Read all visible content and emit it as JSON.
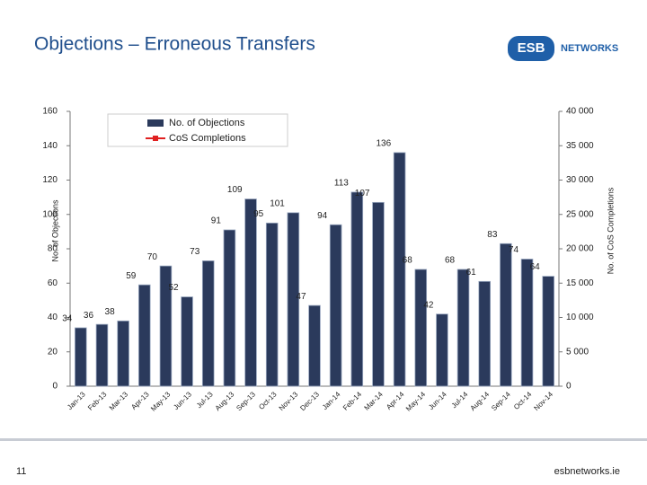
{
  "header": {
    "title": "Objections – Erroneous Transfers",
    "logo": "ESB",
    "logo_sub": "NETWORKS"
  },
  "footer": {
    "page": "11",
    "site": "esbnetworks.ie"
  },
  "chart_data": {
    "type": "bar",
    "categories": [
      "Jan-13",
      "Feb-13",
      "Mar-13",
      "Apr-13",
      "May-13",
      "Jun-13",
      "Jul-13",
      "Aug-13",
      "Sep-13",
      "Oct-13",
      "Nov-13",
      "Dec-13",
      "Jan-14",
      "Feb-14",
      "Mar-14",
      "Apr-14",
      "May-14",
      "Jun-14",
      "Jul-14",
      "Aug-14",
      "Sep-14",
      "Oct-14",
      "Nov-14"
    ],
    "series": [
      {
        "name": "No. of Objections",
        "color": "#2b3a5c",
        "values": [
          34,
          36,
          38,
          59,
          70,
          52,
          73,
          91,
          109,
          95,
          101,
          47,
          94,
          113,
          107,
          136,
          68,
          42,
          68,
          61,
          83,
          74,
          64
        ]
      },
      {
        "name": "CoS Completions",
        "color": "#e02020",
        "axis": "y2",
        "values": [
          null,
          null,
          null,
          null,
          null,
          null,
          null,
          null,
          null,
          null,
          null,
          null,
          null,
          null,
          null,
          null,
          null,
          null,
          null,
          null,
          null,
          null,
          null
        ]
      }
    ],
    "ylabel": "No. of Objections",
    "y2label": "No. of CoS Completions",
    "ylim": [
      0,
      160
    ],
    "yticks": [
      0,
      20,
      40,
      60,
      80,
      100,
      120,
      140,
      160
    ],
    "y2lim": [
      0,
      40000
    ],
    "y2ticks": [
      0,
      {
        "value": 5000,
        "label": "5 000"
      },
      {
        "value": 10000,
        "label": "10 000"
      },
      {
        "value": 15000,
        "label": "15 000"
      },
      {
        "value": 20000,
        "label": "20 000"
      },
      {
        "value": 25000,
        "label": "25 000"
      },
      {
        "value": 30000,
        "label": "30 000"
      },
      {
        "value": 35000,
        "label": "35 000"
      },
      {
        "value": 40000,
        "label": "40 000"
      }
    ],
    "legend": "top-left"
  }
}
